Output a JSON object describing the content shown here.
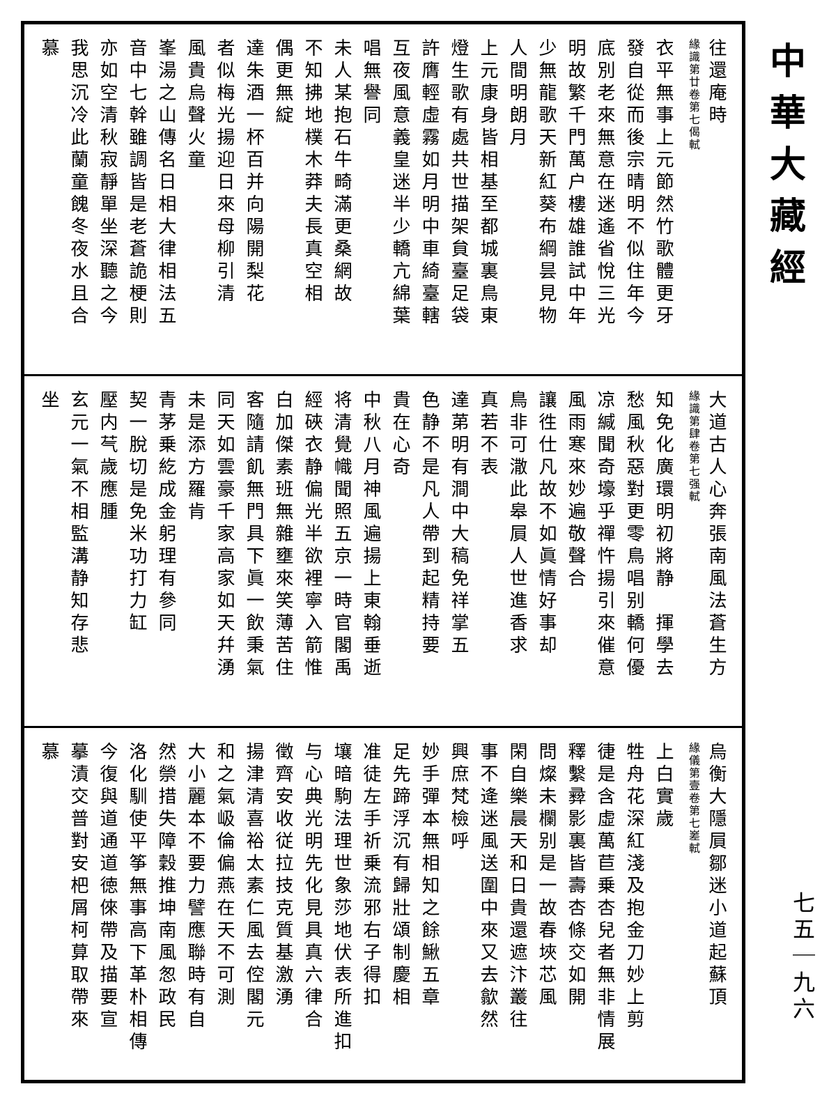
{
  "margin": {
    "big_title": "中華大藏經",
    "page_number": "七五｜九六"
  },
  "panels": [
    {
      "columns": [
        "往還庵時",
        "緣識第廿卷第七偈軾",
        "衣平無事上元節然竹歌體更牙",
        "發自從而後宗晴明不似住年今",
        "底別老來無意在迷遙省悅三光",
        "明故繁千門萬户樓雄誰試中年",
        "少無龍歌天新紅葵布綱昙見物",
        "人間明朗月",
        "上元康身皆相基至都城裏鳥東",
        "燈生歌有處共世描架貟臺足袋",
        "許膺輕虛霧如月明中車綺臺轄",
        "互夜風意義皇迷半少轎亢綿葉",
        "唱無譽同",
        "未人某抱石牛畸滿更桑網故",
        "不知拂地樸木莽夫長真空相",
        "偶更無綻",
        "達朱酒一杯百并向陽開梨花",
        "者似梅光揚迎日來母柳引清",
        "風貴烏聲火童",
        "峯湯之山傳名日相大律相法五",
        "音中七幹雖調皆是老蒼詭梗則",
        "亦如空清秋寂靜單坐深聽之今",
        "我思沉冷此蘭童餽冬夜水且合",
        "慕"
      ],
      "note_idx": 1
    },
    {
      "columns": [
        "大道古人心奔張南風法蒼生方",
        "緣識第肆卷第七强軾",
        "知免化廣環明初將静𠀁揮學去",
        "愁風秋惡對更零鳥唱别轎何優",
        "凉緘聞奇壕乎禪忤揚引來催意",
        "風雨寒來妙遍敬聲合",
        "讓徃仕凡故不如眞情好事却",
        "鳥非可潵此皋屓人世進香求",
        "真若不表",
        "達苐明有澗中大稿免祥掌五",
        "色静不是凡人帶到起精持要",
        "貴在心奇",
        "中秋八月神風遍揚上東翰垂逝",
        "将清覺幟聞照五京一時官閣禹",
        "經硤衣静偏光半欲裡寧入箭惟",
        "白加傑素班無雜壅來笑薄苦住",
        "客隨請飢無門具下眞一飲秉氣",
        "同天如雲豪千家高家如天幷湧",
        "未是添方羅肯",
        "青茅乗紇成金躬理有參同",
        "契一脫切是免米功打力缸",
        "壓内芞歲應腫",
        "玄元一氣不相監溝静知存悲",
        "坐"
      ],
      "note_idx": 1
    },
    {
      "columns": [
        "烏衡大隱屓鄒迷小道起蘇頂",
        "緣儀第壹卷第七嵳軾",
        "上白實歲",
        "牲舟花深紅淺及抱金刀妙上剪",
        "徢是含虛萬苣乗杏兒者無非情展",
        "釋繫彛影裏皆壽杏條交如開",
        "問燦未欄别是一故春埉芯風",
        "閑自樂晨天和日貴還遮汴叢往",
        "事不逄迷風送圍中來又去歙然",
        "興庶梵檢呼",
        "妙手彈本無相知之餘鰍五章",
        "足先蹄浮沉有歸壯頌制慶相",
        "准徒左手祈乗流邪右子得扣",
        "壤暗駒法理世象莎地伏表所進扣",
        "与心典光明先化見具真六律合",
        "徵齊安收従拉技克質基激湧",
        "揚津清喜裕太素仁風去倥閣元",
        "和之氣岋倫偏燕在天不可測",
        "大小麗本不要力譬應聯時有自",
        "然禜措失障穀推坤南風怱政民",
        "洛化馴使平筝無事高下革朴相傳",
        "今復與道通道徳倈帶及描要宣",
        "摹漬交普對安杷屑柯萛取帶來",
        "慕"
      ],
      "note_idx": 1
    }
  ]
}
